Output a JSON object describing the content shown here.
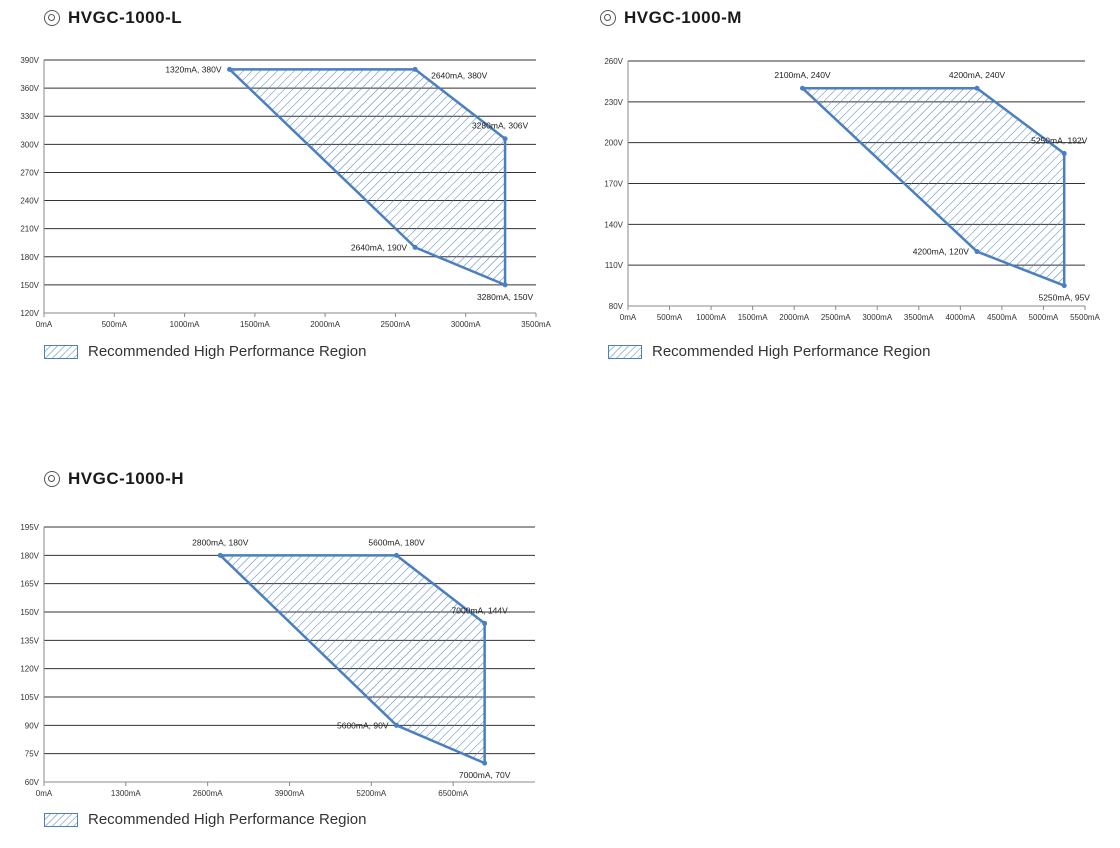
{
  "legend_label": "Recommended High Performance Region",
  "colors": {
    "accent": "#4a7fc1",
    "grid": "#333333",
    "axis": "#888888"
  },
  "chart_data": [
    {
      "id": "L",
      "type": "area",
      "title": "HVGC-1000-L",
      "xlim": [
        0,
        3500
      ],
      "ylim": [
        120,
        390
      ],
      "x_ticks": [
        0,
        500,
        1000,
        1500,
        2000,
        2500,
        3000,
        3500
      ],
      "x_tick_labels": [
        "0mA",
        "500mA",
        "1000mA",
        "1500mA",
        "2000mA",
        "2500mA",
        "3000mA",
        "3500mA"
      ],
      "y_ticks": [
        120,
        150,
        180,
        210,
        240,
        270,
        300,
        330,
        360,
        390
      ],
      "y_tick_labels": [
        "120V",
        "150V",
        "180V",
        "210V",
        "240V",
        "270V",
        "300V",
        "330V",
        "360V",
        "390V"
      ],
      "points": [
        {
          "x": 1320,
          "y": 380,
          "label": "1320mA, 380V",
          "anchor": "left"
        },
        {
          "x": 2640,
          "y": 380,
          "label": "2640mA, 380V",
          "anchor": "right-up"
        },
        {
          "x": 3280,
          "y": 306,
          "label": "3280mA, 306V",
          "anchor": "above"
        },
        {
          "x": 3280,
          "y": 150,
          "label": "3280mA, 150V",
          "anchor": "below"
        },
        {
          "x": 2640,
          "y": 190,
          "label": "2640mA, 190V",
          "anchor": "left"
        }
      ]
    },
    {
      "id": "M",
      "type": "area",
      "title": "HVGC-1000-M",
      "xlim": [
        0,
        5500
      ],
      "ylim": [
        80,
        260
      ],
      "x_ticks": [
        0,
        500,
        1000,
        1500,
        2000,
        2500,
        3000,
        3500,
        4000,
        4500,
        5000,
        5500
      ],
      "x_tick_labels": [
        "0mA",
        "500mA",
        "1000mA",
        "1500mA",
        "2000mA",
        "2500mA",
        "3000mA",
        "3500mA",
        "4000mA",
        "4500mA",
        "5000mA",
        "5500mA"
      ],
      "y_ticks": [
        80,
        110,
        140,
        170,
        200,
        230,
        260
      ],
      "y_tick_labels": [
        "80V",
        "110V",
        "140V",
        "170V",
        "200V",
        "230V",
        "260V"
      ],
      "points": [
        {
          "x": 2100,
          "y": 240,
          "label": "2100mA, 240V",
          "anchor": "above"
        },
        {
          "x": 4200,
          "y": 240,
          "label": "4200mA, 240V",
          "anchor": "above"
        },
        {
          "x": 5250,
          "y": 192,
          "label": "5250mA, 192V",
          "anchor": "above"
        },
        {
          "x": 5250,
          "y": 95,
          "label": "5250mA, 95V",
          "anchor": "below"
        },
        {
          "x": 4200,
          "y": 120,
          "label": "4200mA, 120V",
          "anchor": "left"
        }
      ]
    },
    {
      "id": "H",
      "type": "area",
      "title": "HVGC-1000-H",
      "xlim": [
        0,
        7800
      ],
      "ylim": [
        60,
        195
      ],
      "x_ticks": [
        0,
        1300,
        2600,
        3900,
        5200,
        6500
      ],
      "x_tick_labels": [
        "0mA",
        "1300mA",
        "2600mA",
        "3900mA",
        "5200mA",
        "6500mA"
      ],
      "y_ticks": [
        60,
        75,
        90,
        105,
        120,
        135,
        150,
        165,
        180,
        195
      ],
      "y_tick_labels": [
        "60V",
        "75V",
        "90V",
        "105V",
        "120V",
        "135V",
        "150V",
        "165V",
        "180V",
        "195V"
      ],
      "points": [
        {
          "x": 2800,
          "y": 180,
          "label": "2800mA, 180V",
          "anchor": "above"
        },
        {
          "x": 5600,
          "y": 180,
          "label": "5600mA, 180V",
          "anchor": "above"
        },
        {
          "x": 7000,
          "y": 144,
          "label": "7000mA, 144V",
          "anchor": "above"
        },
        {
          "x": 7000,
          "y": 70,
          "label": "7000mA, 70V",
          "anchor": "below"
        },
        {
          "x": 5600,
          "y": 90,
          "label": "5600mA, 90V",
          "anchor": "left"
        }
      ]
    }
  ]
}
